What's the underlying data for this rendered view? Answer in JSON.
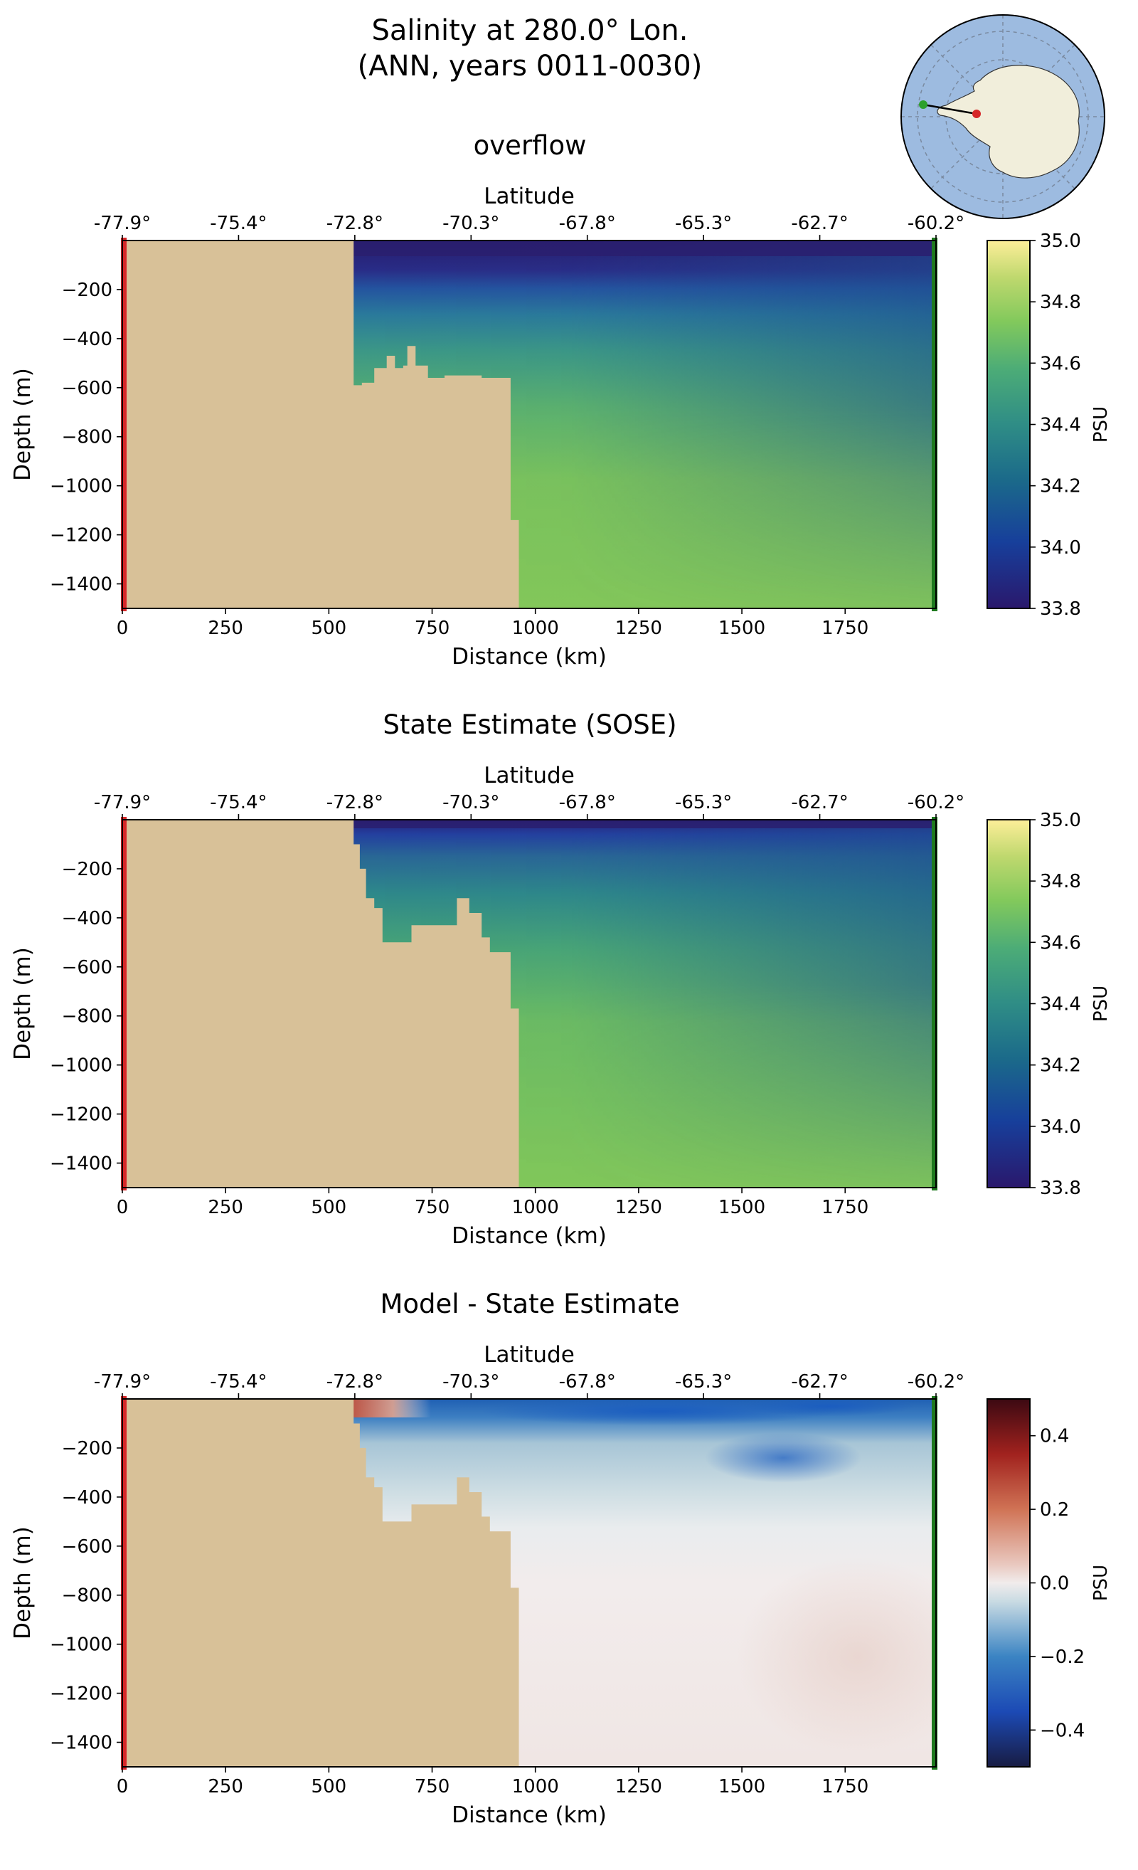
{
  "figure": {
    "title_line1": "Salinity at 280.0° Lon.",
    "title_line2": "(ANN, years 0011-0030)"
  },
  "inset_map": {
    "type": "south-polar-stereographic",
    "ocean_color": "#9dbbe0",
    "land_color": "#f1eedb",
    "transect_start_color": "#d62728",
    "transect_end_color": "#2ca02c"
  },
  "chart_data": [
    {
      "type": "heatmap",
      "title": "overflow",
      "xlabel": "Distance (km)",
      "ylabel": "Depth (m)",
      "top_axis_label": "Latitude",
      "xlim": [
        0,
        1970
      ],
      "ylim": [
        -1500,
        0
      ],
      "x_ticks": [
        "0",
        "250",
        "500",
        "750",
        "1000",
        "1250",
        "1500",
        "1750"
      ],
      "y_ticks": [
        "−200",
        "−400",
        "−600",
        "−800",
        "−1000",
        "−1200",
        "−1400"
      ],
      "lat_ticks": [
        "-77.9°",
        "-75.4°",
        "-72.8°",
        "-70.3°",
        "-67.8°",
        "-65.3°",
        "-62.7°",
        "-60.2°"
      ],
      "colorbar": {
        "label": "PSU",
        "range": [
          33.8,
          35.0
        ],
        "ticks": [
          "35.0",
          "34.8",
          "34.6",
          "34.4",
          "34.2",
          "34.0",
          "33.8"
        ],
        "colormap": "haline"
      },
      "bathymetry_km_depth_m": [
        [
          0,
          -1500
        ],
        [
          0,
          0
        ],
        [
          560,
          0
        ],
        [
          560,
          -590
        ],
        [
          580,
          -590
        ],
        [
          580,
          -580
        ],
        [
          610,
          -580
        ],
        [
          610,
          -520
        ],
        [
          640,
          -520
        ],
        [
          640,
          -470
        ],
        [
          660,
          -470
        ],
        [
          660,
          -520
        ],
        [
          680,
          -520
        ],
        [
          680,
          -510
        ],
        [
          690,
          -510
        ],
        [
          690,
          -430
        ],
        [
          710,
          -430
        ],
        [
          710,
          -510
        ],
        [
          740,
          -510
        ],
        [
          740,
          -560
        ],
        [
          780,
          -560
        ],
        [
          780,
          -550
        ],
        [
          870,
          -550
        ],
        [
          870,
          -560
        ],
        [
          940,
          -560
        ],
        [
          940,
          -1140
        ],
        [
          960,
          -1140
        ],
        [
          960,
          -1500
        ]
      ]
    },
    {
      "type": "heatmap",
      "title": "State Estimate (SOSE)",
      "xlabel": "Distance (km)",
      "ylabel": "Depth (m)",
      "top_axis_label": "Latitude",
      "xlim": [
        0,
        1970
      ],
      "ylim": [
        -1500,
        0
      ],
      "x_ticks": [
        "0",
        "250",
        "500",
        "750",
        "1000",
        "1250",
        "1500",
        "1750"
      ],
      "y_ticks": [
        "−200",
        "−400",
        "−600",
        "−800",
        "−1000",
        "−1200",
        "−1400"
      ],
      "lat_ticks": [
        "-77.9°",
        "-75.4°",
        "-72.8°",
        "-70.3°",
        "-67.8°",
        "-65.3°",
        "-62.7°",
        "-60.2°"
      ],
      "colorbar": {
        "label": "PSU",
        "range": [
          33.8,
          35.0
        ],
        "ticks": [
          "35.0",
          "34.8",
          "34.6",
          "34.4",
          "34.2",
          "34.0",
          "33.8"
        ],
        "colormap": "haline"
      },
      "bathymetry_km_depth_m": [
        [
          0,
          -1500
        ],
        [
          0,
          0
        ],
        [
          560,
          0
        ],
        [
          560,
          -100
        ],
        [
          575,
          -100
        ],
        [
          575,
          -200
        ],
        [
          590,
          -200
        ],
        [
          590,
          -320
        ],
        [
          610,
          -320
        ],
        [
          610,
          -360
        ],
        [
          630,
          -360
        ],
        [
          630,
          -500
        ],
        [
          700,
          -500
        ],
        [
          700,
          -430
        ],
        [
          810,
          -430
        ],
        [
          810,
          -320
        ],
        [
          840,
          -320
        ],
        [
          840,
          -380
        ],
        [
          870,
          -380
        ],
        [
          870,
          -480
        ],
        [
          890,
          -480
        ],
        [
          890,
          -540
        ],
        [
          940,
          -540
        ],
        [
          940,
          -770
        ],
        [
          960,
          -770
        ],
        [
          960,
          -1500
        ]
      ]
    },
    {
      "type": "heatmap",
      "title": "Model - State Estimate",
      "xlabel": "Distance (km)",
      "ylabel": "Depth (m)",
      "top_axis_label": "Latitude",
      "xlim": [
        0,
        1970
      ],
      "ylim": [
        -1500,
        0
      ],
      "x_ticks": [
        "0",
        "250",
        "500",
        "750",
        "1000",
        "1250",
        "1500",
        "1750"
      ],
      "y_ticks": [
        "−200",
        "−400",
        "−600",
        "−800",
        "−1000",
        "−1200",
        "−1400"
      ],
      "lat_ticks": [
        "-77.9°",
        "-75.4°",
        "-72.8°",
        "-70.3°",
        "-67.8°",
        "-65.3°",
        "-62.7°",
        "-60.2°"
      ],
      "colorbar": {
        "label": "PSU",
        "range": [
          -0.5,
          0.5
        ],
        "ticks": [
          "0.4",
          "0.2",
          "0.0",
          "−0.2",
          "−0.4"
        ],
        "colormap": "balance"
      },
      "bathymetry_km_depth_m": [
        [
          0,
          -1500
        ],
        [
          0,
          0
        ],
        [
          560,
          0
        ],
        [
          560,
          -100
        ],
        [
          575,
          -100
        ],
        [
          575,
          -200
        ],
        [
          590,
          -200
        ],
        [
          590,
          -320
        ],
        [
          610,
          -320
        ],
        [
          610,
          -360
        ],
        [
          630,
          -360
        ],
        [
          630,
          -500
        ],
        [
          700,
          -500
        ],
        [
          700,
          -430
        ],
        [
          810,
          -430
        ],
        [
          810,
          -320
        ],
        [
          840,
          -320
        ],
        [
          840,
          -380
        ],
        [
          870,
          -380
        ],
        [
          870,
          -480
        ],
        [
          890,
          -480
        ],
        [
          890,
          -540
        ],
        [
          940,
          -540
        ],
        [
          940,
          -770
        ],
        [
          960,
          -770
        ],
        [
          960,
          -1500
        ]
      ]
    }
  ]
}
